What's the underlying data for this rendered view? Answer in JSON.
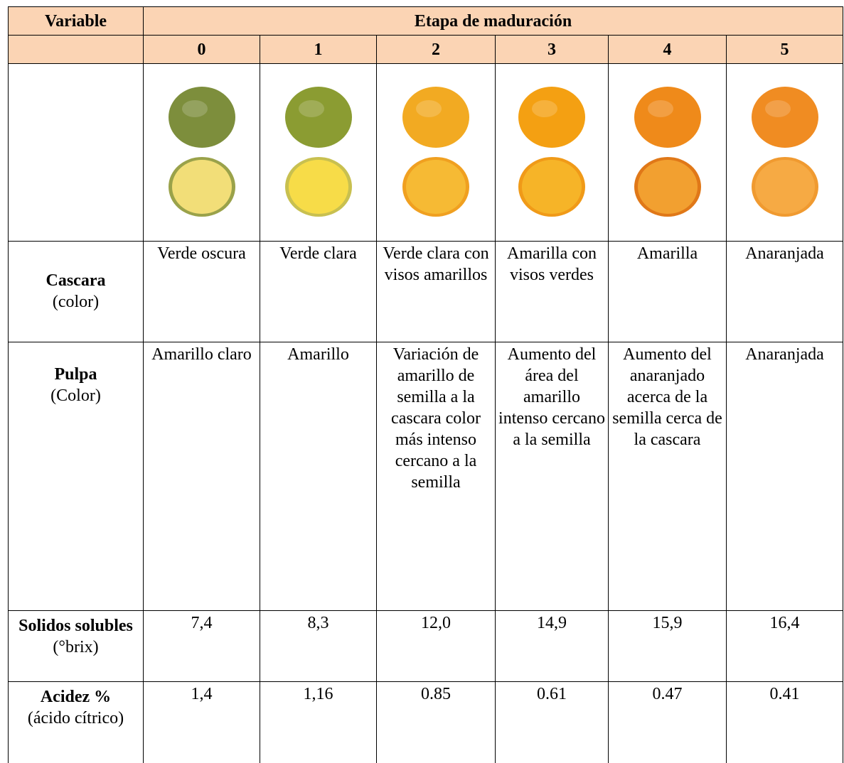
{
  "table": {
    "header": {
      "variable": "Variable",
      "group": "Etapa de maduración",
      "stages": [
        "0",
        "1",
        "2",
        "3",
        "4",
        "5"
      ]
    },
    "rows": [
      {
        "name": "Cascara",
        "unit": "(color)",
        "cells": [
          "Verde oscura",
          "Verde clara",
          "Verde clara con visos amarillos",
          "Amarilla con visos verdes",
          "Amarilla",
          "Anaranjada"
        ]
      },
      {
        "name": "Pulpa",
        "unit": "(Color)",
        "cells": [
          "Amarillo claro",
          "Amarillo",
          "Variación de amarillo de semilla a la cascara color más intenso cercano a la semilla",
          "Aumento del área del amarillo intenso cercano a la semilla",
          "Aumento del anaranjado acerca de la semilla cerca de la cascara",
          "Anaranjada"
        ]
      },
      {
        "name": "Solidos solubles",
        "unit": "(°brix)",
        "cells": [
          "7,4",
          "8,3",
          "12,0",
          "14,9",
          "15,9",
          "16,4"
        ]
      },
      {
        "name": "Acidez %",
        "unit": "(ácido cítrico)",
        "cells": [
          "1,4",
          "1,16",
          "0.85",
          "0.61",
          "0.47",
          "0.41"
        ]
      }
    ]
  }
}
